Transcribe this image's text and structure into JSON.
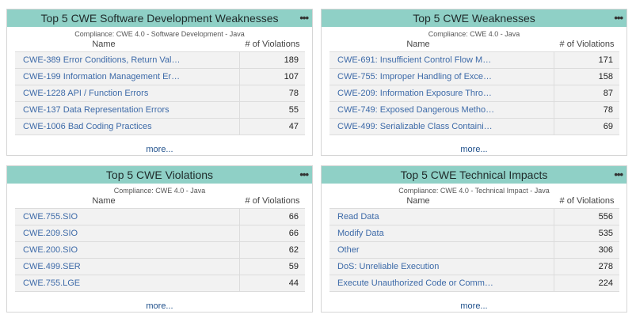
{
  "widgets": [
    {
      "title": "Top 5 CWE Software Development Weaknesses",
      "menu": "•••",
      "subtitle": "Compliance: CWE 4.0 - Software Development - Java",
      "col_name": "Name",
      "col_violations": "# of Violations",
      "rows": [
        {
          "name": "CWE-389 Error Conditions, Return Val…",
          "value": "189"
        },
        {
          "name": "CWE-199 Information Management Er…",
          "value": "107"
        },
        {
          "name": "CWE-1228 API / Function Errors",
          "value": "78"
        },
        {
          "name": "CWE-137 Data Representation Errors",
          "value": "55"
        },
        {
          "name": "CWE-1006 Bad Coding Practices",
          "value": "47"
        }
      ],
      "more": "more..."
    },
    {
      "title": "Top 5 CWE Weaknesses",
      "menu": "•••",
      "subtitle": "Compliance: CWE 4.0 - Java",
      "col_name": "Name",
      "col_violations": "# of Violations",
      "rows": [
        {
          "name": "CWE-691: Insufficient Control Flow M…",
          "value": "171"
        },
        {
          "name": "CWE-755: Improper Handling of Exce…",
          "value": "158"
        },
        {
          "name": "CWE-209: Information Exposure Thro…",
          "value": "87"
        },
        {
          "name": "CWE-749: Exposed Dangerous Metho…",
          "value": "78"
        },
        {
          "name": "CWE-499: Serializable Class Containi…",
          "value": "69"
        }
      ],
      "more": "more..."
    },
    {
      "title": "Top 5 CWE Violations",
      "menu": "•••",
      "subtitle": "Compliance: CWE 4.0 - Java",
      "col_name": "Name",
      "col_violations": "# of Violations",
      "rows": [
        {
          "name": "CWE.755.SIO",
          "value": "66"
        },
        {
          "name": "CWE.209.SIO",
          "value": "66"
        },
        {
          "name": "CWE.200.SIO",
          "value": "62"
        },
        {
          "name": "CWE.499.SER",
          "value": "59"
        },
        {
          "name": "CWE.755.LGE",
          "value": "44"
        }
      ],
      "more": "more..."
    },
    {
      "title": "Top 5 CWE Technical Impacts",
      "menu": "•••",
      "subtitle": "Compliance: CWE 4.0 - Technical Impact - Java",
      "col_name": "Name",
      "col_violations": "# of Violations",
      "rows": [
        {
          "name": "Read Data",
          "value": "556"
        },
        {
          "name": "Modify Data",
          "value": "535"
        },
        {
          "name": "Other",
          "value": "306"
        },
        {
          "name": "DoS: Unreliable Execution",
          "value": "278"
        },
        {
          "name": "Execute Unauthorized Code or Comm…",
          "value": "224"
        }
      ],
      "more": "more..."
    }
  ],
  "colors": {
    "header_bg": "#8fd0c6",
    "link": "#3d6aa8",
    "row_bg": "#f2f2f2"
  }
}
